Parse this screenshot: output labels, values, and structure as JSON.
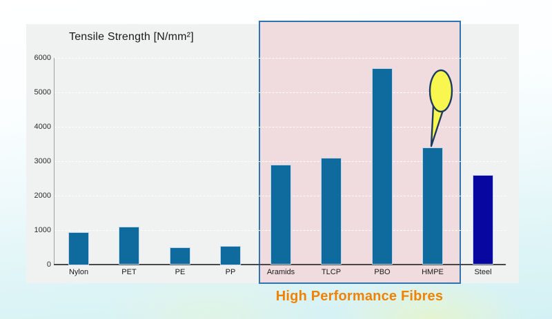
{
  "chart_data": {
    "type": "bar",
    "title": "Tensile Strength [N/mm²]",
    "categories": [
      "Nylon",
      "PET",
      "PE",
      "PP",
      "Aramids",
      "TLCP",
      "PBO",
      "HMPE",
      "Steel"
    ],
    "values": [
      950,
      1100,
      500,
      550,
      2900,
      3100,
      5700,
      3400,
      2600
    ],
    "bar_colors": [
      "#0f6a9e",
      "#0f6a9e",
      "#0f6a9e",
      "#0f6a9e",
      "#0f6a9e",
      "#0f6a9e",
      "#0f6a9e",
      "#0f6a9e",
      "#0808a0"
    ],
    "xlabel": "",
    "ylabel": "",
    "ylim": [
      0,
      6000
    ],
    "yticks": [
      0,
      1000,
      2000,
      3000,
      4000,
      5000,
      6000
    ],
    "grid": "horizontal white dashed gridlines every 1000",
    "legend": "none",
    "highlight_box": {
      "caption": "High Performance Fibres",
      "categories": [
        "Aramids",
        "TLCP",
        "PBO",
        "HMPE"
      ],
      "fill_color": "#f0dcdf",
      "border_color": "#2e74b0",
      "caption_color": "#f08200"
    },
    "annotation": {
      "type": "empty callout balloon",
      "target_category": "HMPE",
      "fill_color": "#f9f74f",
      "stroke_color": "#1c3a5e"
    }
  },
  "colors": {
    "panel_background": "#f0f1f1",
    "default_bar": "#0f6a9e",
    "steel_bar": "#0808a0",
    "axis_line": "#474747"
  }
}
